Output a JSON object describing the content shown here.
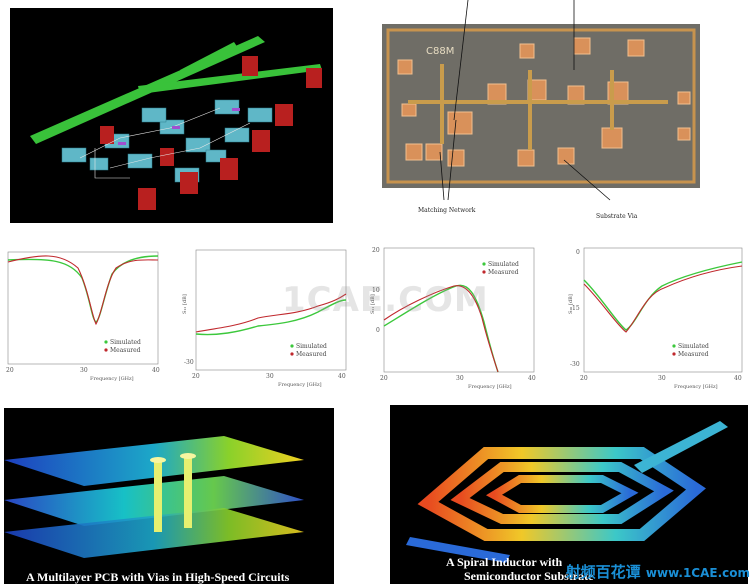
{
  "chip": {
    "chip_label": "C88M",
    "annotation_matching": "Matching Network",
    "annotation_via": "Substrate Via"
  },
  "watermark": "1CAE.COM",
  "plots": [
    {
      "id": "p1",
      "ylabel": "",
      "xticks": [
        "20",
        "30",
        "40"
      ],
      "yticks": [],
      "xlabel": "Frequency [GHz]",
      "legend": [
        "Simulated",
        "Measured"
      ]
    },
    {
      "id": "p2",
      "ylabel": "S₁₂ [dB]",
      "xticks": [
        "20",
        "30",
        "40"
      ],
      "yticks": [
        "-30"
      ],
      "xlabel": "Frequency [GHz]",
      "legend": [
        "Simulated",
        "Measured"
      ]
    },
    {
      "id": "p3",
      "ylabel": "S₂₁ [dB]",
      "xticks": [
        "20",
        "30",
        "40"
      ],
      "yticks": [
        "20",
        "10",
        "0"
      ],
      "xlabel": "Frequency [GHz]",
      "legend": [
        "Simulated",
        "Measured"
      ]
    },
    {
      "id": "p4",
      "ylabel": "S₂₂ [dB]",
      "xticks": [
        "20",
        "30",
        "40"
      ],
      "yticks": [
        "0",
        "-15",
        "-30"
      ],
      "xlabel": "Frequency [GHz]",
      "legend": [
        "Simulated",
        "Measured"
      ]
    }
  ],
  "series_colors": {
    "simulated": "#3cc83c",
    "measured": "#c0282d"
  },
  "captions": {
    "pcb": "A Multilayer PCB with Vias in High-Speed Circuits",
    "inductor_line1": "A Spiral Inductor with",
    "inductor_line2": "Semiconductor Substrate"
  },
  "brand": {
    "cn": "射频百花谭",
    "site": "www.1CAE.com"
  }
}
